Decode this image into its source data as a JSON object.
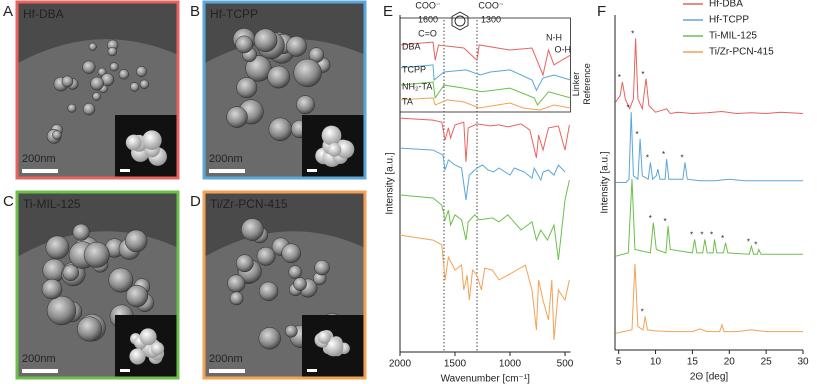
{
  "panels": [
    {
      "letter": "A",
      "label": "Hf-DBA",
      "color": "#e8635d",
      "scale": "200nm"
    },
    {
      "letter": "B",
      "label": "Hf-TCPP",
      "color": "#5aa7da",
      "scale": "200nm"
    },
    {
      "letter": "C",
      "label": "Ti-MIL-125",
      "color": "#6dbf4b",
      "scale": "200nm"
    },
    {
      "letter": "D",
      "label": "Ti/Zr-PCN-415",
      "color": "#f2a255",
      "scale": "200nm"
    }
  ],
  "chart_data": [
    {
      "type": "line",
      "panel": "E",
      "xlabel": "Wavenumber [cm⁻¹]",
      "ylabel": "Intensity [a.u.]",
      "xlim": [
        2000,
        450
      ],
      "xticks": [
        2000,
        1500,
        1000,
        500
      ],
      "ylim": [
        0,
        100
      ],
      "annotations": {
        "coo_left": "COO⁻",
        "coo_right": "COO⁻",
        "co": "C=O",
        "nh": "N-H",
        "oh": "O-H",
        "linker": "Linker",
        "reference": "Reference"
      },
      "ref_lines": [
        {
          "value": 1600,
          "label": "1600"
        },
        {
          "value": 1300,
          "label": "1300"
        }
      ],
      "reference_series": [
        {
          "name": "DBA",
          "color": "#e8635d",
          "x": [
            2000,
            1700,
            1680,
            1650,
            1420,
            1300,
            1280,
            1000,
            800,
            700,
            650,
            600,
            450
          ],
          "values": [
            91.1,
            92.0,
            86.6,
            91.1,
            90.2,
            86.6,
            91.1,
            89.6,
            90.2,
            82.2,
            89.6,
            85.2,
            88.1
          ]
        },
        {
          "name": "TCPP",
          "color": "#5aa7da",
          "x": [
            2000,
            1700,
            1690,
            1600,
            1400,
            1270,
            1180,
            1000,
            800,
            760,
            700,
            600,
            450
          ],
          "values": [
            84.3,
            85.2,
            80.7,
            83.1,
            83.7,
            82.2,
            83.1,
            83.7,
            80.7,
            77.7,
            81.3,
            82.2,
            80.7
          ]
        },
        {
          "name": "NH₂-TA",
          "color": "#6dbf4b",
          "x": [
            2000,
            1700,
            1680,
            1600,
            1420,
            1260,
            1000,
            780,
            750,
            650,
            450
          ],
          "values": [
            79.2,
            80.1,
            75.4,
            79.2,
            78.3,
            77.2,
            78.3,
            75.4,
            73.3,
            77.2,
            75.4
          ]
        },
        {
          "name": "TA",
          "color": "#f2a255",
          "x": [
            2000,
            1700,
            1680,
            1570,
            1420,
            1280,
            1000,
            880,
            730,
            600,
            450
          ],
          "values": [
            74.8,
            75.4,
            73.3,
            74.8,
            74.2,
            72.4,
            73.9,
            72.4,
            71.8,
            73.3,
            72.4
          ]
        }
      ],
      "series": [
        {
          "color": "#e8635d",
          "x": [
            2000,
            1700,
            1620,
            1590,
            1560,
            1540,
            1500,
            1420,
            1400,
            1380,
            1300,
            1180,
            1100,
            1020,
            900,
            820,
            760,
            740,
            700,
            650,
            560,
            500,
            460
          ],
          "values": [
            69.4,
            68.8,
            68.2,
            62.9,
            66.5,
            63.5,
            67.4,
            68.2,
            56.4,
            66.5,
            67.7,
            67.1,
            67.4,
            66.8,
            67.7,
            65.9,
            57.6,
            64.4,
            59.9,
            66.5,
            67.1,
            59.9,
            67.4
          ]
        },
        {
          "color": "#5aa7da",
          "x": [
            2000,
            1700,
            1610,
            1590,
            1560,
            1500,
            1440,
            1400,
            1370,
            1300,
            1250,
            1200,
            1150,
            1100,
            1000,
            960,
            870,
            800,
            780,
            720,
            700,
            650,
            600,
            560,
            500
          ],
          "values": [
            60.5,
            59.9,
            58.5,
            54.0,
            57.0,
            55.5,
            54.6,
            45.1,
            52.5,
            54.6,
            55.5,
            54.0,
            53.4,
            54.6,
            52.5,
            54.6,
            53.4,
            51.6,
            54.6,
            51.0,
            53.4,
            54.0,
            52.5,
            55.5,
            53.4
          ]
        },
        {
          "color": "#6dbf4b",
          "x": [
            2000,
            1700,
            1620,
            1590,
            1560,
            1540,
            1500,
            1440,
            1400,
            1380,
            1320,
            1280,
            1160,
            1100,
            1020,
            900,
            800,
            760,
            720,
            660,
            600,
            560,
            500,
            460
          ],
          "values": [
            46.6,
            45.7,
            43.6,
            39.2,
            42.1,
            37.7,
            40.7,
            39.2,
            33.2,
            38.6,
            40.7,
            39.2,
            39.8,
            38.6,
            40.7,
            36.2,
            38.6,
            33.2,
            36.2,
            33.2,
            37.7,
            27.3,
            45.1,
            51.0
          ]
        },
        {
          "color": "#f2a255",
          "x": [
            2000,
            1700,
            1620,
            1590,
            1560,
            1500,
            1440,
            1420,
            1390,
            1370,
            1340,
            1300,
            1260,
            1230,
            1160,
            1100,
            1020,
            860,
            800,
            760,
            740,
            700,
            650,
            620,
            600,
            560,
            500,
            460
          ],
          "values": [
            34.7,
            33.2,
            31.8,
            21.4,
            28.2,
            24.3,
            25.8,
            18.4,
            22.8,
            15.4,
            24.3,
            22.8,
            18.4,
            24.9,
            24.3,
            21.4,
            22.8,
            25.8,
            18.4,
            6.5,
            21.4,
            15.4,
            9.5,
            21.4,
            3.6,
            18.4,
            15.4,
            21.4
          ]
        }
      ]
    },
    {
      "type": "line",
      "panel": "F",
      "xlabel": "2Θ [deg]",
      "ylabel": "Intensity [a.u.]",
      "xlim": [
        4.5,
        30
      ],
      "xticks": [
        5,
        10,
        15,
        20,
        25,
        30
      ],
      "ylim": [
        0,
        100
      ],
      "legend": "upper right",
      "star": "*",
      "series": [
        {
          "name": "Hf-DBA",
          "color": "#e8635d",
          "x": [
            4.6,
            5.2,
            5.5,
            5.9,
            6.5,
            7.0,
            7.3,
            7.6,
            8.2,
            8.7,
            9.1,
            10,
            11.5,
            12,
            13,
            15,
            17,
            19,
            21,
            23,
            25,
            27,
            30
          ],
          "values": [
            74,
            76,
            80,
            75,
            72,
            75,
            93,
            75,
            72,
            81,
            73,
            71,
            72,
            70.6,
            71,
            70.6,
            70.8,
            71.2,
            70.6,
            70.8,
            70.6,
            71,
            70.6
          ],
          "stars": [
            5.5,
            7.3,
            8.7
          ]
        },
        {
          "name": "Hf-TCPP",
          "color": "#5aa7da",
          "x": [
            4.6,
            6,
            6.4,
            6.7,
            7.0,
            7.6,
            7.9,
            8.2,
            9,
            9.3,
            9.6,
            10.1,
            10.3,
            10.6,
            11.3,
            11.5,
            11.8,
            13.7,
            14,
            14.3,
            16,
            18,
            20,
            22,
            25,
            30
          ],
          "values": [
            50,
            50,
            51,
            71,
            52,
            51,
            63,
            52,
            51,
            56,
            51,
            52,
            54,
            51,
            51,
            57,
            51,
            51,
            56,
            51,
            50.5,
            50.5,
            51,
            50.5,
            50.5,
            50.5
          ],
          "stars": [
            6.7,
            7.9,
            9.3,
            11.5,
            14
          ]
        },
        {
          "name": "Ti-MIL-125",
          "color": "#6dbf4b",
          "x": [
            4.6,
            6.3,
            6.8,
            7.2,
            9.3,
            9.7,
            10.1,
            11.4,
            11.7,
            12,
            15,
            15.3,
            15.6,
            16.4,
            16.7,
            17,
            17.8,
            18,
            18.3,
            19.2,
            19.5,
            19.8,
            22.7,
            23,
            23.3,
            23.8,
            24,
            24.3,
            27,
            30
          ],
          "values": [
            28,
            29,
            51,
            30,
            29,
            38,
            30,
            29,
            37,
            30,
            29,
            33,
            29,
            29,
            33,
            29,
            29,
            33,
            29,
            29,
            32,
            29,
            28.6,
            31,
            28.6,
            28.6,
            30,
            28.6,
            28.6,
            28.6
          ],
          "stars": [
            9.7,
            11.7,
            15.3,
            16.7,
            18,
            19.5,
            23,
            24
          ]
        },
        {
          "name": "Ti/Zr-PCN-415",
          "color": "#f2a255",
          "x": [
            4.6,
            6.8,
            7.2,
            7.6,
            8.3,
            8.6,
            8.9,
            10,
            12,
            15,
            16,
            17,
            18.7,
            19,
            19.3,
            21,
            23,
            25,
            27,
            30
          ],
          "values": [
            5,
            6,
            25.7,
            7,
            6,
            10,
            6,
            5.7,
            5.5,
            5.5,
            6.3,
            5.5,
            5.5,
            7.5,
            5.5,
            5.5,
            6,
            5.5,
            5.5,
            5.5
          ],
          "stars": [
            8.6
          ]
        }
      ]
    }
  ]
}
